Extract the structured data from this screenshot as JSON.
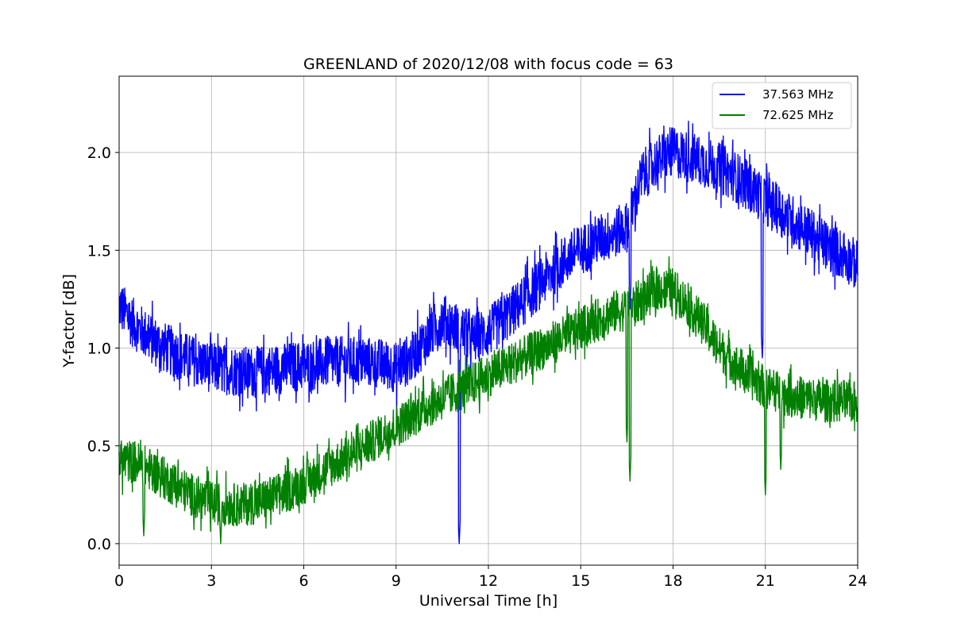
{
  "chart_data": {
    "type": "line",
    "title": "GREENLAND of 2020/12/08 with focus code = 63",
    "xlabel": "Universal Time [h]",
    "ylabel": "Y-factor [dB]",
    "xlim": [
      0,
      24
    ],
    "ylim": [
      -0.11,
      2.39
    ],
    "xticks": [
      0,
      3,
      6,
      9,
      12,
      15,
      18,
      21,
      24
    ],
    "xtick_labels": [
      "0",
      "3",
      "6",
      "9",
      "12",
      "15",
      "18",
      "21",
      "24"
    ],
    "yticks": [
      0.0,
      0.5,
      1.0,
      1.5,
      2.0
    ],
    "ytick_labels": [
      "0.0",
      "0.5",
      "1.0",
      "1.5",
      "2.0"
    ],
    "grid": true,
    "legend_position": "top-right",
    "series": [
      {
        "name": "37.563 MHz",
        "color": "#0000ff",
        "noise_amplitude": 0.13,
        "x": [
          0,
          0.5,
          1,
          1.5,
          2,
          2.5,
          3,
          3.5,
          4,
          4.5,
          5,
          5.5,
          6,
          6.5,
          7,
          7.5,
          8,
          8.5,
          9,
          9.5,
          10,
          10.5,
          11,
          11.5,
          12,
          12.5,
          13,
          13.5,
          14,
          14.5,
          15,
          15.5,
          16,
          16.5,
          17,
          17.5,
          18,
          18.5,
          19,
          19.5,
          20,
          20.5,
          21,
          21.5,
          22,
          22.5,
          23,
          23.5,
          24
        ],
        "y": [
          1.22,
          1.12,
          1.05,
          1.0,
          0.96,
          0.93,
          0.9,
          0.89,
          0.88,
          0.88,
          0.89,
          0.9,
          0.91,
          0.92,
          0.93,
          0.93,
          0.93,
          0.92,
          0.9,
          0.95,
          1.05,
          1.15,
          1.1,
          1.05,
          1.08,
          1.15,
          1.22,
          1.3,
          1.38,
          1.45,
          1.5,
          1.55,
          1.58,
          1.62,
          1.88,
          1.96,
          2.0,
          1.98,
          1.95,
          1.92,
          1.88,
          1.82,
          1.76,
          1.7,
          1.64,
          1.58,
          1.52,
          1.48,
          1.42
        ],
        "dips": [
          {
            "x": 11.05,
            "y": 0.0
          },
          {
            "x": 16.6,
            "y": 1.2
          },
          {
            "x": 20.9,
            "y": 0.95
          }
        ]
      },
      {
        "name": "72.625 MHz",
        "color": "#008000",
        "noise_amplitude": 0.11,
        "x": [
          0,
          0.5,
          1,
          1.5,
          2,
          2.5,
          3,
          3.5,
          4,
          4.5,
          5,
          5.5,
          6,
          6.5,
          7,
          7.5,
          8,
          8.5,
          9,
          9.5,
          10,
          10.5,
          11,
          11.5,
          12,
          12.5,
          13,
          13.5,
          14,
          14.5,
          15,
          15.5,
          16,
          16.5,
          17,
          17.5,
          18,
          18.5,
          19,
          19.5,
          20,
          20.5,
          21,
          21.5,
          22,
          22.5,
          23,
          23.5,
          24
        ],
        "y": [
          0.42,
          0.42,
          0.38,
          0.33,
          0.28,
          0.24,
          0.21,
          0.2,
          0.2,
          0.21,
          0.24,
          0.27,
          0.31,
          0.36,
          0.41,
          0.45,
          0.5,
          0.55,
          0.6,
          0.65,
          0.7,
          0.74,
          0.78,
          0.82,
          0.86,
          0.9,
          0.94,
          0.98,
          1.02,
          1.06,
          1.1,
          1.14,
          1.18,
          1.2,
          1.25,
          1.3,
          1.3,
          1.22,
          1.12,
          1.0,
          0.92,
          0.85,
          0.8,
          0.77,
          0.75,
          0.74,
          0.73,
          0.73,
          0.72
        ],
        "dips": [
          {
            "x": 0.8,
            "y": 0.04
          },
          {
            "x": 3.3,
            "y": 0.0
          },
          {
            "x": 16.5,
            "y": 0.52
          },
          {
            "x": 16.6,
            "y": 0.32
          },
          {
            "x": 21.0,
            "y": 0.25
          },
          {
            "x": 21.5,
            "y": 0.38
          }
        ]
      }
    ]
  }
}
